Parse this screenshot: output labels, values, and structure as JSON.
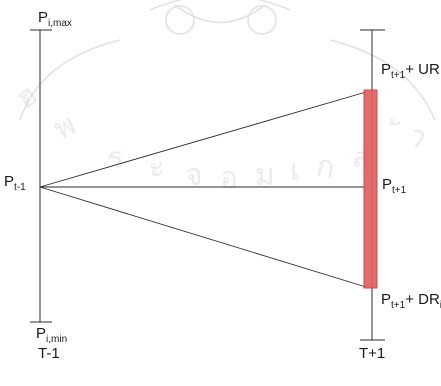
{
  "labels": {
    "p_max_base": "P",
    "p_max_sub": "i,max",
    "p_min_base": "P",
    "p_min_sub": "i,min",
    "p_tminus1_base": "P",
    "p_tminus1_sub": "t-1",
    "p_tplus1_base": "P",
    "p_tplus1_sub": "t+1",
    "upper_base": "P",
    "upper_sub": "t+1",
    "upper_suffix": "+ UR",
    "lower_base": "P",
    "lower_sub": "t+1",
    "lower_suffix": "+ DR",
    "lower_suffix_sub": "i",
    "axis_left": "T-1",
    "axis_right": "T+1"
  },
  "colors": {
    "line": "#2b2b2b",
    "band_fill": "#e06060",
    "band_stroke": "#c94040",
    "watermark": "#b8b8b8"
  }
}
